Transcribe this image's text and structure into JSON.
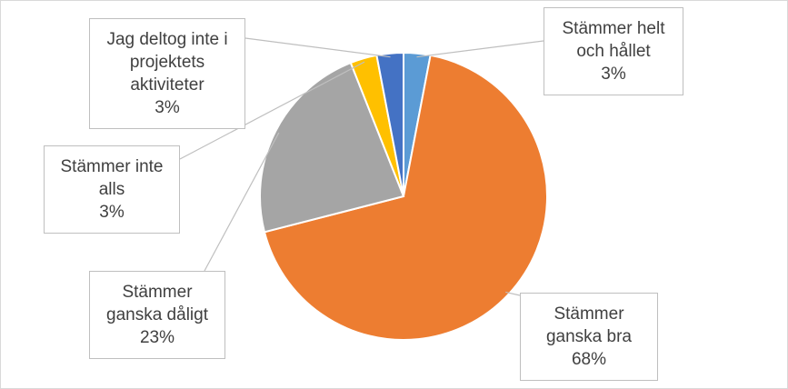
{
  "chart_data": {
    "type": "pie",
    "categories": [
      "Stämmer helt och hållet",
      "Stämmer ganska bra",
      "Stämmer ganska dåligt",
      "Stämmer inte alls",
      "Jag deltog inte i projektets aktiviteter"
    ],
    "values": [
      3,
      68,
      23,
      3,
      3
    ],
    "value_labels": [
      "3%",
      "68%",
      "23%",
      "3%",
      "3%"
    ],
    "colors": [
      "#5b9bd5",
      "#ed7d31",
      "#a5a5a5",
      "#ffc000",
      "#4472c4"
    ]
  }
}
